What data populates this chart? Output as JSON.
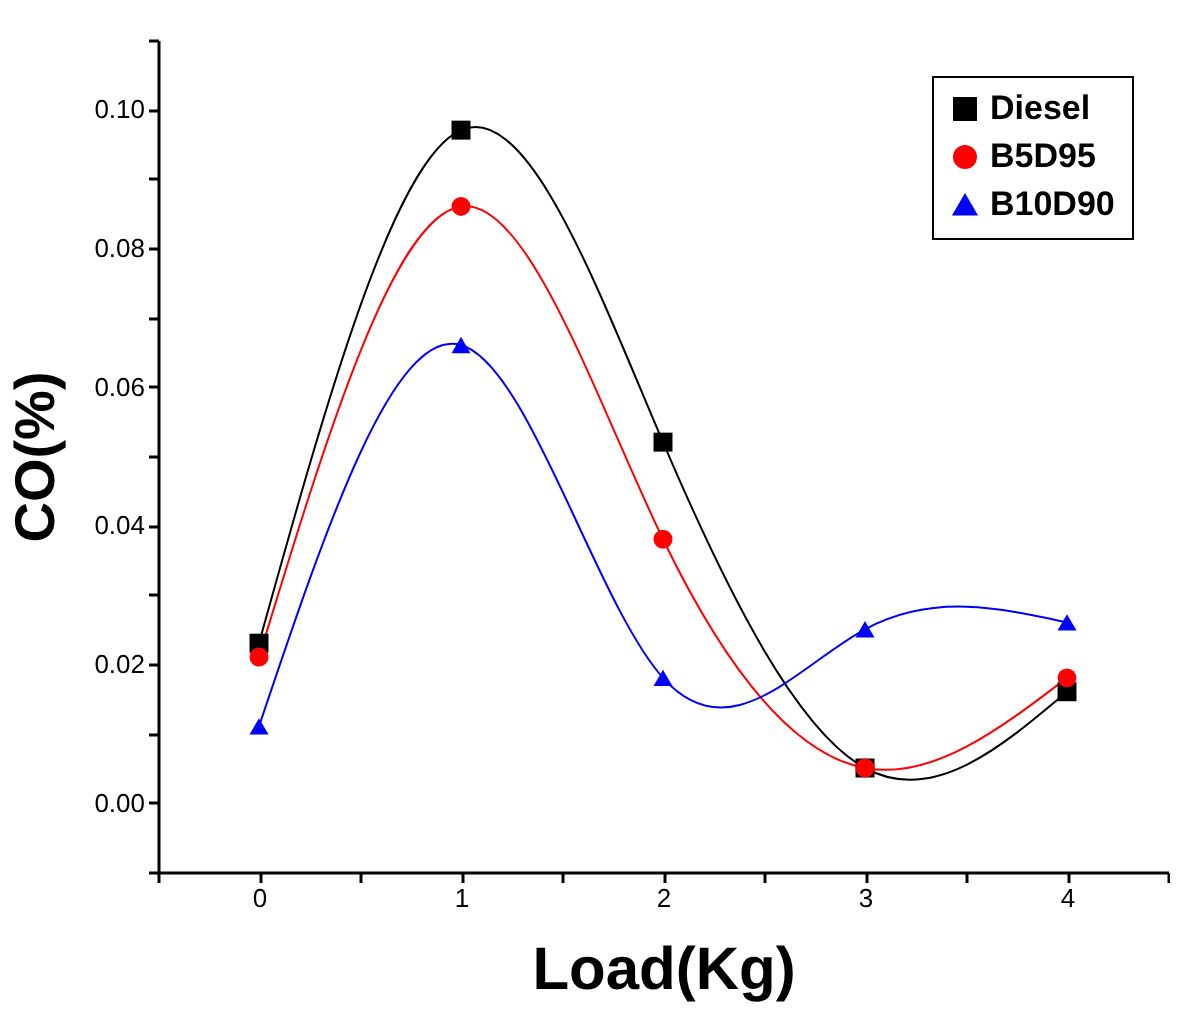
{
  "chart_data": {
    "type": "line",
    "xlabel": "Load(Kg)",
    "ylabel": "CO(%)",
    "x": [
      0,
      1,
      2,
      3,
      4
    ],
    "series": [
      {
        "name": "Diesel",
        "color": "#000000",
        "marker": "square",
        "values": [
          0.023,
          0.097,
          0.052,
          0.005,
          0.016
        ]
      },
      {
        "name": "B5D95",
        "color": "#ff0000",
        "marker": "circle",
        "values": [
          0.021,
          0.086,
          0.038,
          0.005,
          0.018
        ]
      },
      {
        "name": "B10D90",
        "color": "#0000ff",
        "marker": "triangle",
        "values": [
          0.011,
          0.066,
          0.018,
          0.025,
          0.026
        ]
      }
    ],
    "xlim": [
      -0.5,
      4.5
    ],
    "xticks": [
      {
        "value": -0.5,
        "label": null
      },
      0,
      {
        "value": 0.5,
        "label": null
      },
      1,
      {
        "value": 1.5,
        "label": null
      },
      2,
      {
        "value": 2.5,
        "label": null
      },
      3,
      {
        "value": 3.5,
        "label": null
      },
      4,
      {
        "value": 4.5,
        "label": null
      }
    ],
    "ylim": [
      -0.01,
      0.11
    ],
    "yticks": [
      {
        "value": -0.01,
        "label": null
      },
      {
        "value": 0,
        "label": "0.00"
      },
      {
        "value": 0.01,
        "label": null
      },
      {
        "value": 0.02,
        "label": "0.02"
      },
      {
        "value": 0.03,
        "label": null
      },
      {
        "value": 0.04,
        "label": "0.04"
      },
      {
        "value": 0.05,
        "label": null
      },
      {
        "value": 0.06,
        "label": "0.06"
      },
      {
        "value": 0.07,
        "label": null
      },
      {
        "value": 0.08,
        "label": "0.08"
      },
      {
        "value": 0.09,
        "label": null
      },
      {
        "value": 0.1,
        "label": "0.10"
      },
      {
        "value": 0.11,
        "label": null
      }
    ],
    "legend": "top right",
    "grid": false,
    "line_style": "solid"
  }
}
